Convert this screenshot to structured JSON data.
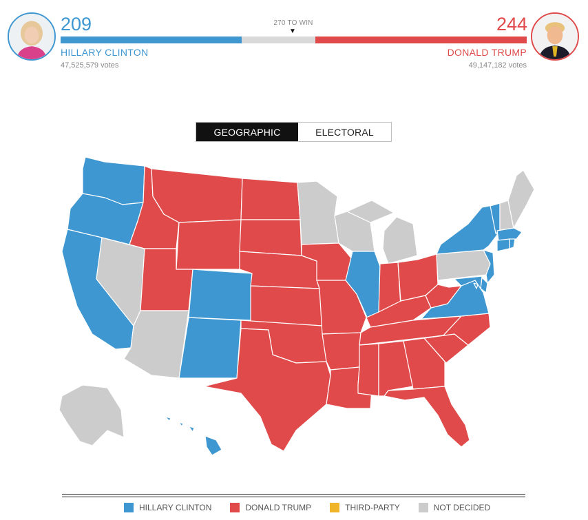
{
  "header": {
    "clinton": {
      "electoral": "209",
      "name": "HILLARY CLINTON",
      "votes": "47,525,579 votes",
      "color": "#3e97d1"
    },
    "trump": {
      "electoral": "244",
      "name": "DONALD TRUMP",
      "votes": "49,147,182 votes",
      "color": "#e04a4a"
    },
    "win_label": "270 TO WIN",
    "win_marker": "▼",
    "total_electoral": 538,
    "threshold": 270
  },
  "toggle": {
    "geographic": "GEOGRAPHIC",
    "electoral": "ELECTORAL",
    "active": "geographic"
  },
  "map": {
    "colors": {
      "clinton": "#3e97d1",
      "trump": "#e04a4a",
      "third_party": "#f0b429",
      "undecided": "#cccccc"
    },
    "states": {
      "WA": "clinton",
      "OR": "clinton",
      "CA": "clinton",
      "NV": "undecided",
      "ID": "trump",
      "MT": "trump",
      "WY": "trump",
      "UT": "trump",
      "AZ": "undecided",
      "CO": "clinton",
      "NM": "clinton",
      "ND": "trump",
      "SD": "trump",
      "NE": "trump",
      "KS": "trump",
      "OK": "trump",
      "TX": "trump",
      "MN": "undecided",
      "IA": "trump",
      "MO": "trump",
      "AR": "trump",
      "LA": "trump",
      "WI": "undecided",
      "MI": "undecided",
      "IL": "clinton",
      "IN": "trump",
      "OH": "trump",
      "KY": "trump",
      "TN": "trump",
      "MS": "trump",
      "AL": "trump",
      "GA": "trump",
      "FL": "trump",
      "SC": "trump",
      "NC": "trump",
      "VA": "clinton",
      "WV": "trump",
      "PA": "undecided",
      "NY": "clinton",
      "VT": "clinton",
      "NH": "undecided",
      "ME": "undecided",
      "MA": "clinton",
      "RI": "clinton",
      "CT": "clinton",
      "NJ": "clinton",
      "DE": "clinton",
      "MD": "clinton",
      "DC": "clinton",
      "AK": "undecided",
      "HI": "clinton"
    }
  },
  "legend": {
    "items": [
      {
        "label": "HILLARY CLINTON",
        "color": "#3e97d1"
      },
      {
        "label": "DONALD TRUMP",
        "color": "#e04a4a"
      },
      {
        "label": "THIRD-PARTY",
        "color": "#f0b429"
      },
      {
        "label": "NOT DECIDED",
        "color": "#cccccc"
      }
    ]
  }
}
